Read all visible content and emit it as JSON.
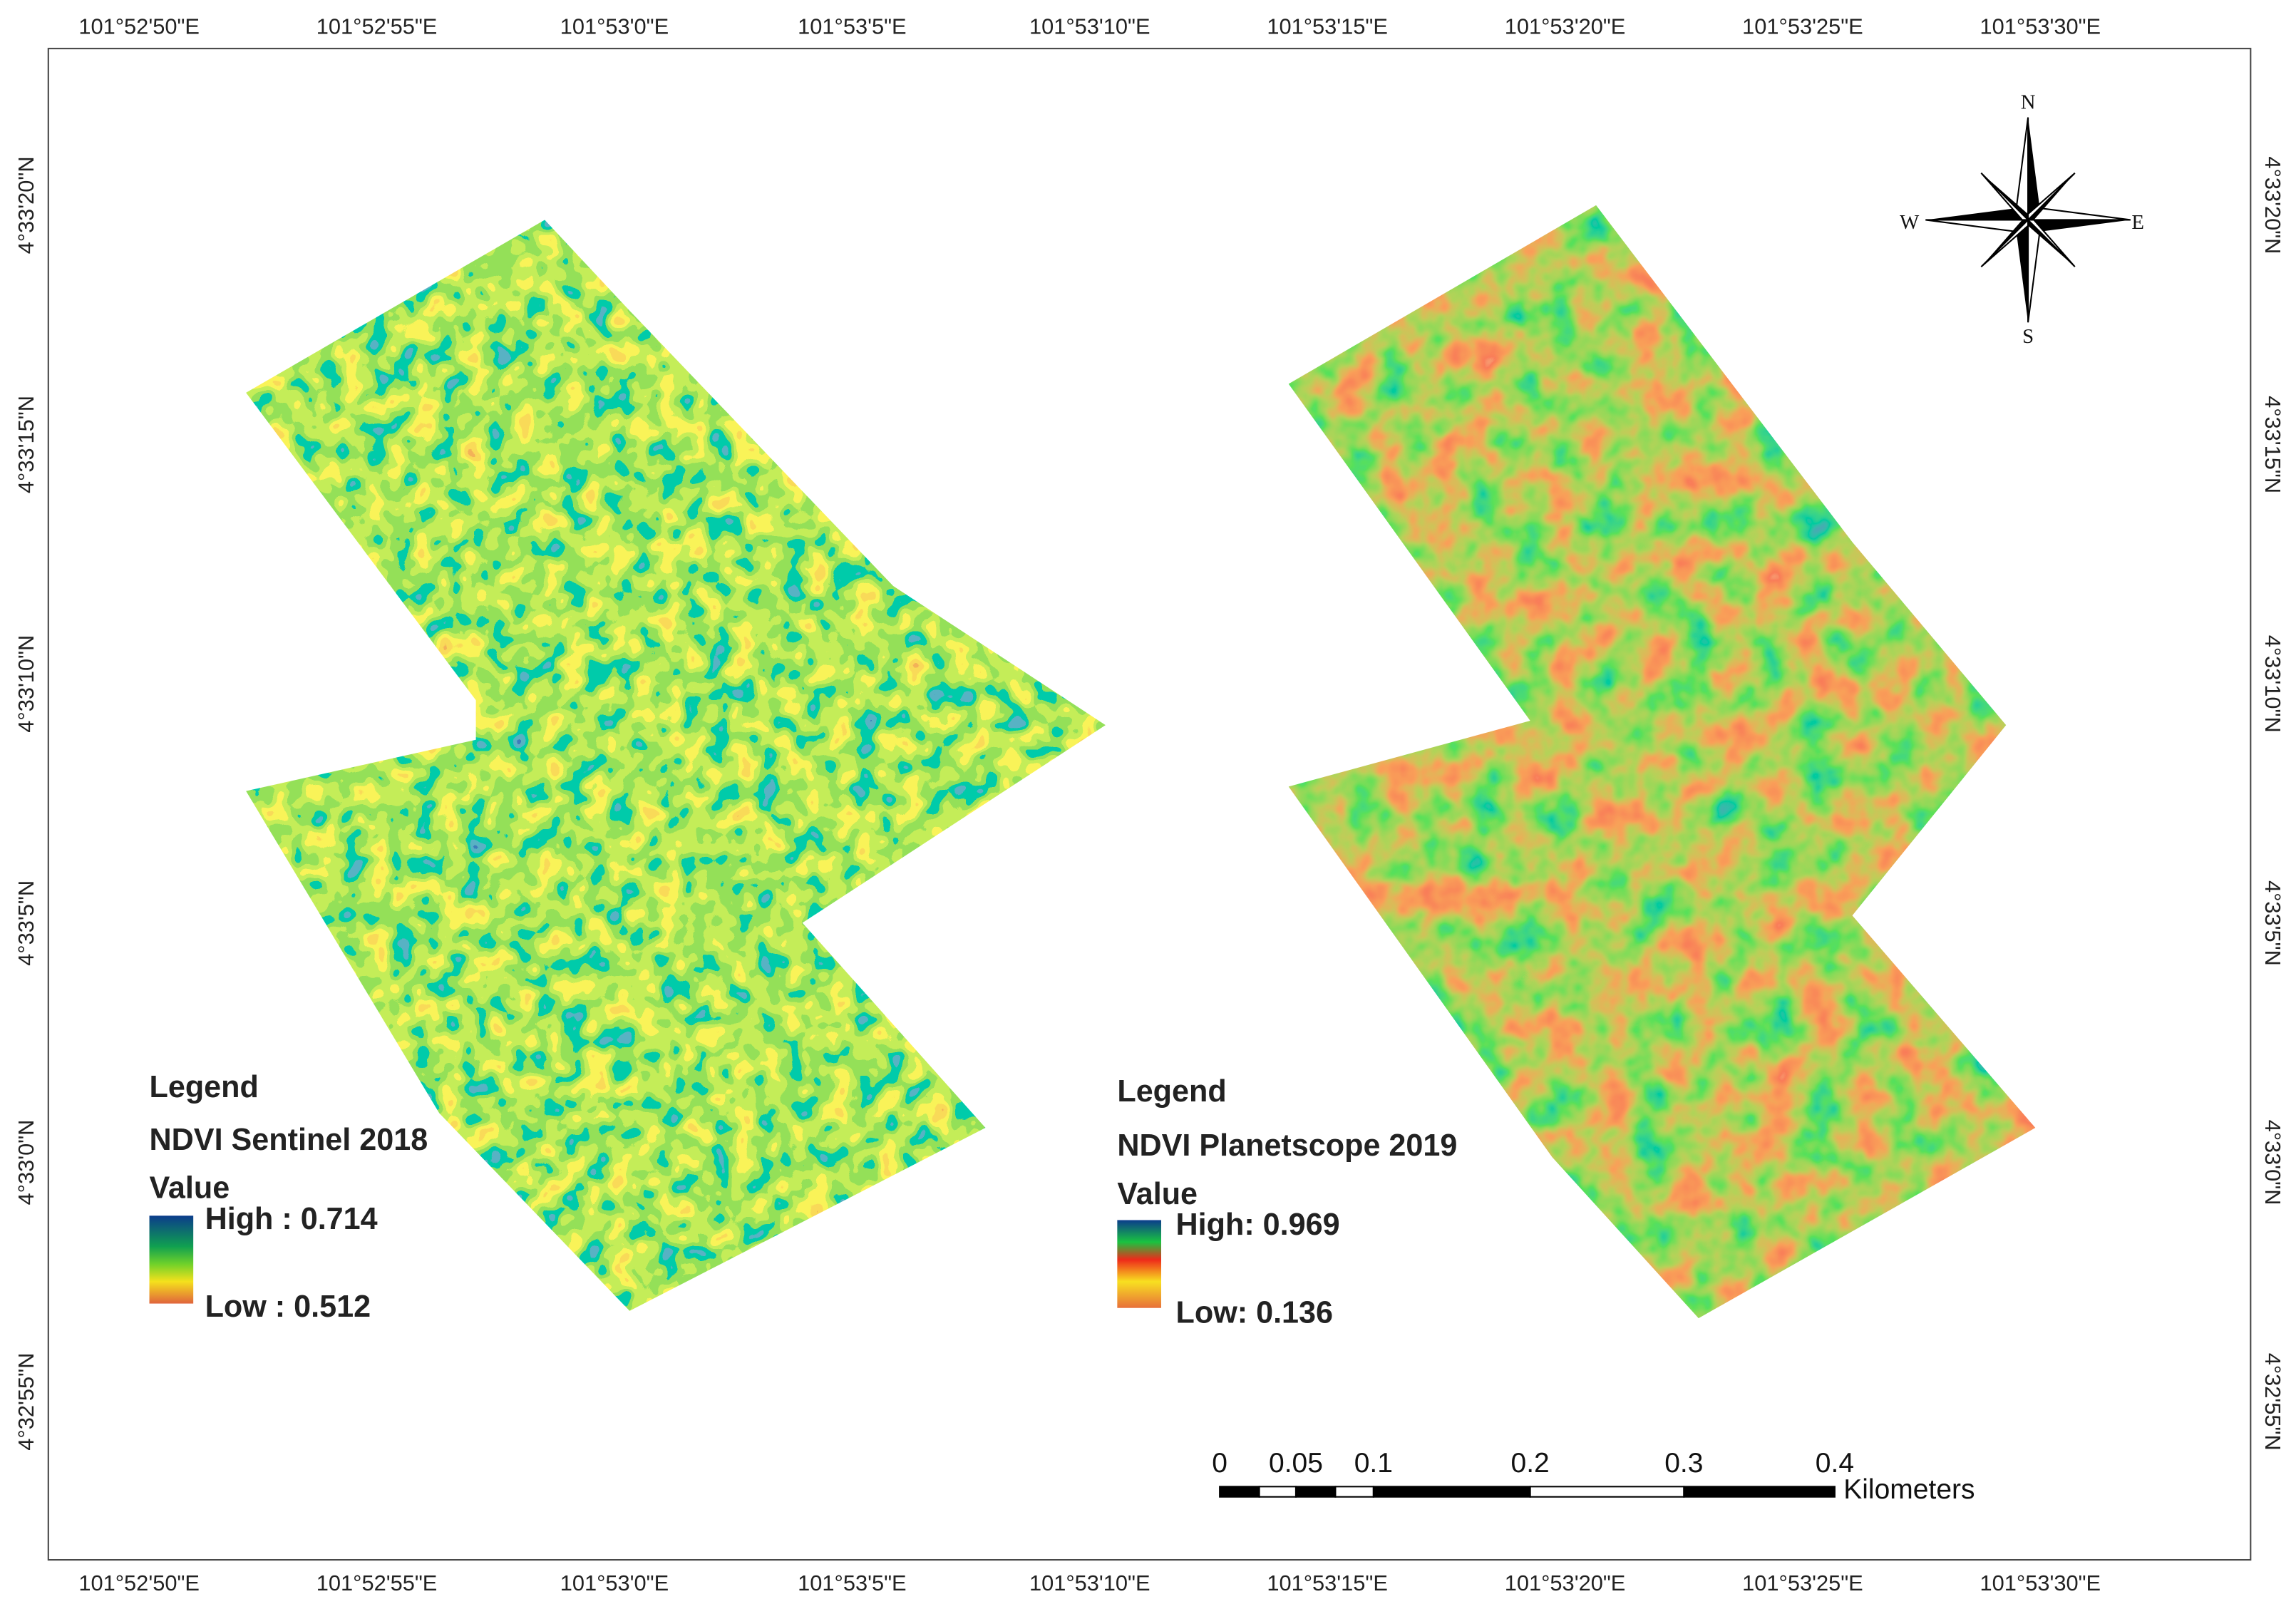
{
  "axes": {
    "top": [
      "101°52'50\"E",
      "101°52'55\"E",
      "101°53'0\"E",
      "101°53'5\"E",
      "101°53'10\"E",
      "101°53'15\"E",
      "101°53'20\"E",
      "101°53'25\"E",
      "101°53'30\"E"
    ],
    "bottom": [
      "101°52'50\"E",
      "101°52'55\"E",
      "101°53'0\"E",
      "101°53'5\"E",
      "101°53'10\"E",
      "101°53'15\"E",
      "101°53'20\"E",
      "101°53'25\"E",
      "101°53'30\"E"
    ],
    "left": [
      "4°33'20\"N",
      "4°33'15\"N",
      "4°33'10\"N",
      "4°33'5\"N",
      "4°33'0\"N",
      "4°32'55\"N"
    ],
    "right": [
      "4°33'20\"N",
      "4°33'15\"N",
      "4°33'10\"N",
      "4°33'5\"N",
      "4°33'0\"N",
      "4°32'55\"N"
    ]
  },
  "legends": [
    {
      "title": "Legend",
      "layer": "NDVI Sentinel 2018",
      "field": "Value",
      "high": "High : 0.714",
      "low": "Low : 0.512"
    },
    {
      "title": "Legend",
      "layer": "NDVI Planetscope 2019",
      "field": "Value",
      "high": "High: 0.969",
      "low": "Low: 0.136"
    }
  ],
  "scale_bar": {
    "labels": [
      "0",
      "0.05",
      "0.1",
      "0.2",
      "0.3",
      "0.4"
    ],
    "unit": "Kilometers"
  },
  "north_arrow": {
    "n": "N",
    "s": "S",
    "e": "E",
    "w": "W"
  }
}
